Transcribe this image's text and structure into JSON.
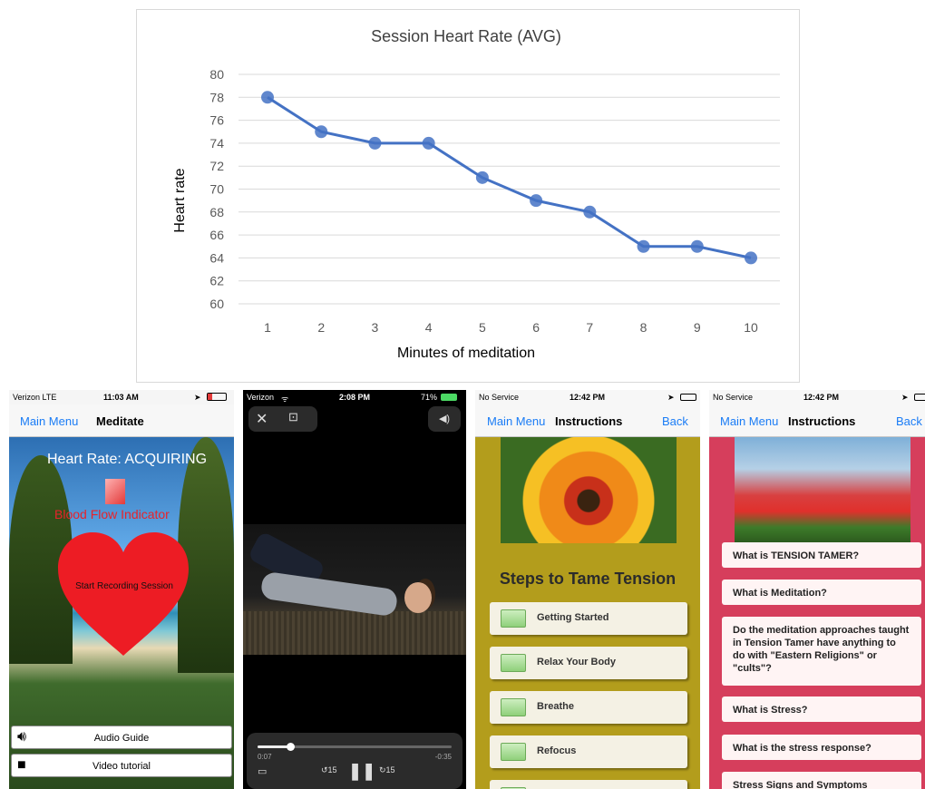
{
  "chart_data": {
    "type": "line",
    "title": "Session Heart Rate (AVG)",
    "xlabel": "Minutes of meditation",
    "ylabel": "Heart rate",
    "x": [
      1,
      2,
      3,
      4,
      5,
      6,
      7,
      8,
      9,
      10
    ],
    "series": [
      {
        "values": [
          78,
          75,
          74,
          74,
          71,
          69,
          68,
          65,
          65,
          64
        ]
      }
    ],
    "ylim": [
      60,
      80
    ],
    "yticks": [
      60,
      62,
      64,
      66,
      68,
      70,
      72,
      74,
      76,
      78,
      80
    ],
    "grid": true,
    "color": "#4472c4"
  },
  "phone1": {
    "carrier": "Verizon  LTE",
    "time": "11:03 AM",
    "nav_left": "Main Menu",
    "nav_title": "Meditate",
    "heart_rate": "Heart Rate: ACQUIRING",
    "blood_flow": "Blood Flow Indicator",
    "start": "Start Recording Session",
    "audio_guide": "Audio Guide",
    "video_tutorial": "Video tutorial"
  },
  "phone2": {
    "carrier": "Verizon",
    "time": "2:08 PM",
    "battery": "71%",
    "elapsed": "0:07",
    "remaining": "-0:35",
    "progress": 0.17,
    "skip_back": "15",
    "skip_fwd": "15"
  },
  "phone3": {
    "carrier": "No Service",
    "time": "12:42 PM",
    "nav_left": "Main Menu",
    "nav_title": "Instructions",
    "nav_right": "Back",
    "steps_title": "Steps to Tame Tension",
    "steps": [
      "Getting Started",
      "Relax Your Body",
      "Breathe",
      "Refocus"
    ]
  },
  "phone4": {
    "carrier": "No Service",
    "time": "12:42 PM",
    "nav_left": "Main Menu",
    "nav_title": "Instructions",
    "nav_right": "Back",
    "faqs": [
      "What is TENSION TAMER?",
      "What is Meditation?",
      "Do the meditation approaches taught in Tension Tamer have anything to do with \"Eastern Religions\" or \"cults\"?",
      "What is Stress?",
      "What is the stress response?",
      "Stress Signs and Symptoms"
    ]
  }
}
